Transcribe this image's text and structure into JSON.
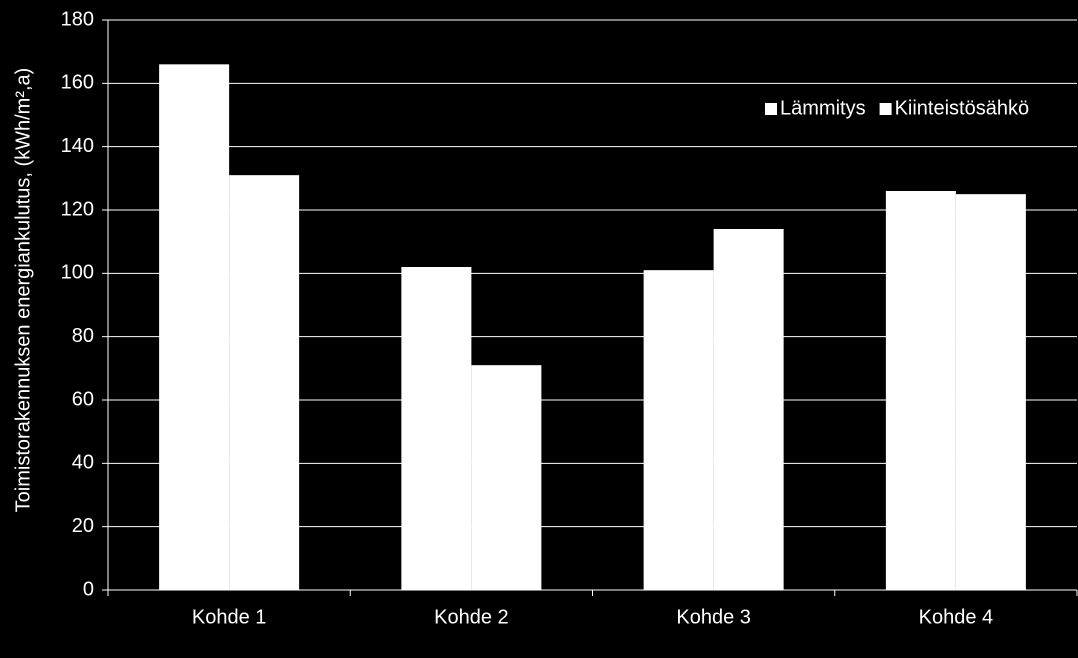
{
  "chart_data": {
    "type": "bar",
    "y_label": "Toimistorakennuksen energiankulutus, (kWh/m²,a)",
    "categories": [
      "Kohde 1",
      "Kohde 2",
      "Kohde 3",
      "Kohde 4"
    ],
    "series": [
      {
        "name": "Lämmitys",
        "color": "#ffffff",
        "values": [
          166,
          102,
          101,
          126
        ]
      },
      {
        "name": "Kiinteistösähkö",
        "color": "#ffffff",
        "values": [
          131,
          71,
          114,
          125
        ]
      }
    ],
    "ylim": [
      0,
      180
    ],
    "yticks": [
      0,
      20,
      40,
      60,
      80,
      100,
      120,
      140,
      160,
      180
    ],
    "grid": true,
    "legend": "upper right"
  }
}
